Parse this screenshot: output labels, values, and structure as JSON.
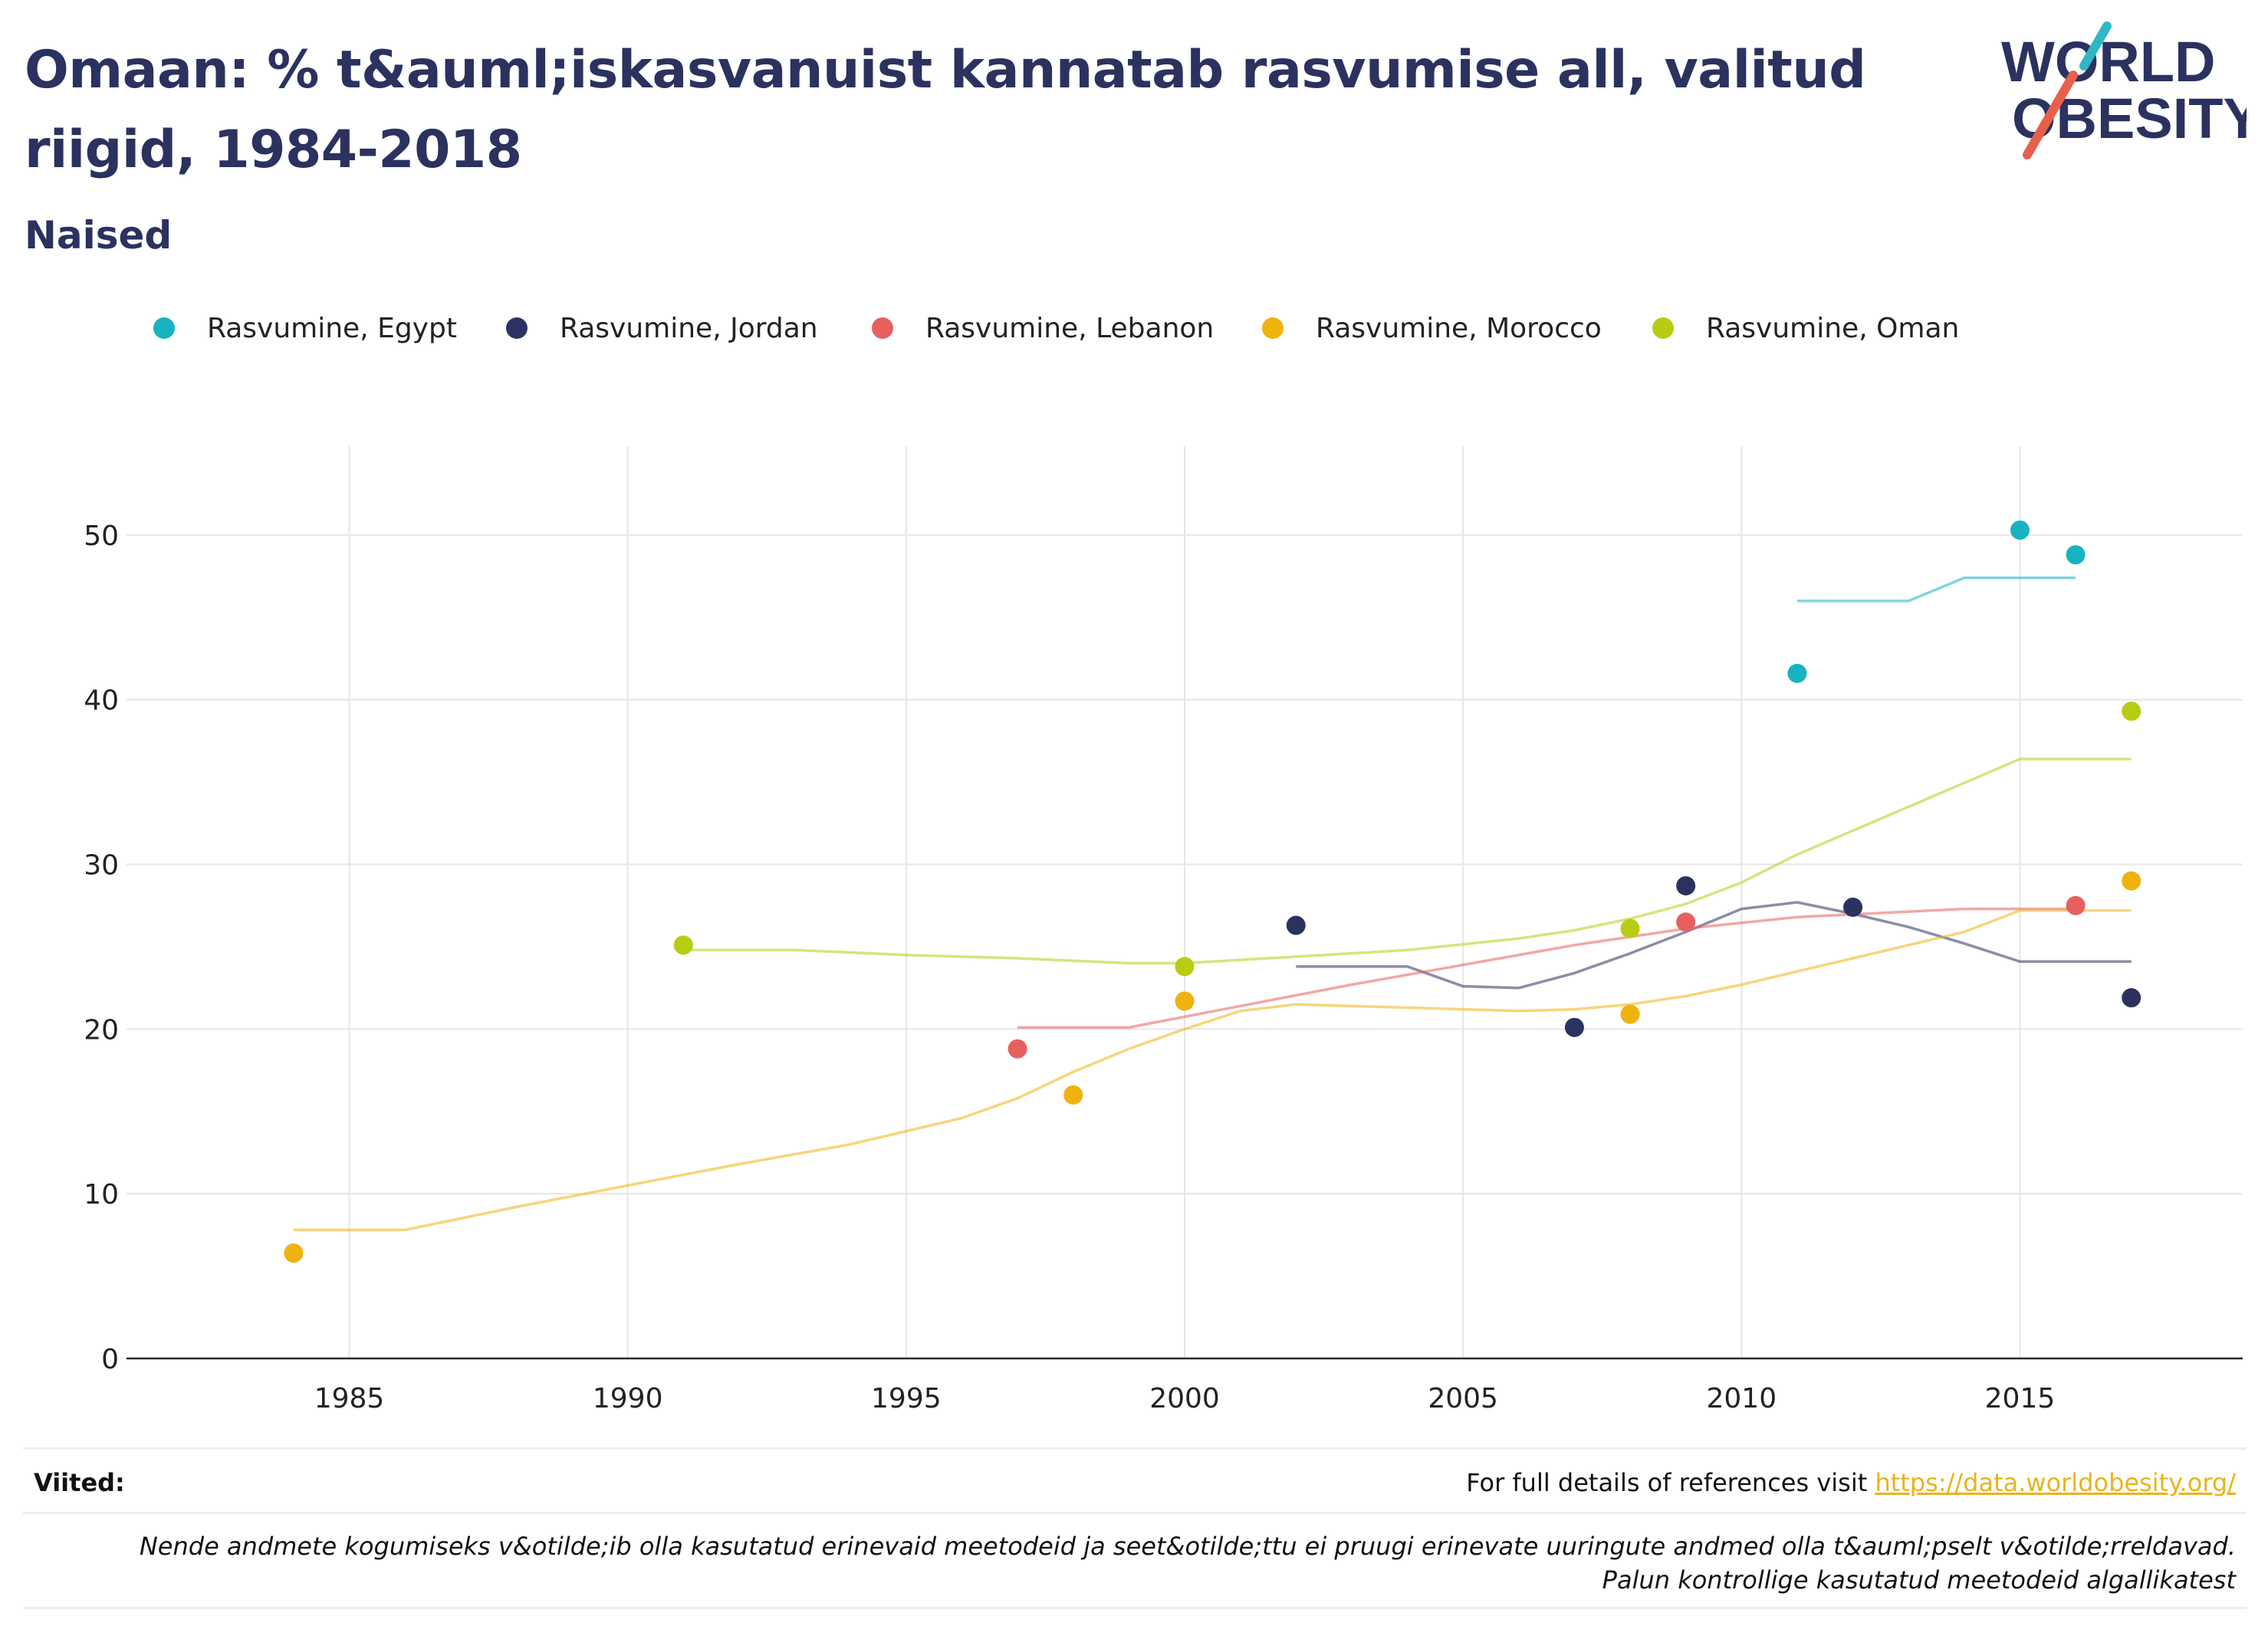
{
  "header": {
    "title": "Omaan: % t&auml;iskasvanuist kannatab rasvumise all, valitud riigid, 1984-2018",
    "subtitle": "Naised"
  },
  "logo": {
    "line1": "WORLD",
    "line2": "OBESITY"
  },
  "footer": {
    "refs_label": "Viited:",
    "refs_text": "For full details of references visit ",
    "refs_link": "https://data.worldobesity.org/",
    "note": "Nende andmete kogumiseks v&otilde;ib olla kasutatud erinevaid meetodeid ja seet&otilde;ttu ei pruugi erinevate uuringute andmed olla t&auml;pselt v&otilde;rreldavad. Palun kontrollige kasutatud meetodeid algallikatest"
  },
  "chart_data": {
    "type": "scatter",
    "title": "Omaan: % t&auml;iskasvanuist kannatab rasvumise all, valitud riigid, 1984-2018",
    "subtitle": "Naised",
    "xlabel": "",
    "ylabel": "",
    "xlim": [
      1981,
      2019
    ],
    "ylim": [
      0,
      54
    ],
    "xticks": [
      1985,
      1990,
      1995,
      2000,
      2005,
      2010,
      2015
    ],
    "yticks": [
      0,
      10,
      20,
      30,
      40,
      50
    ],
    "grid": true,
    "legend_position": "top",
    "series": [
      {
        "name": "Rasvumine, Egypt",
        "color": "#17b3c1",
        "points": [
          [
            2011,
            41.6
          ],
          [
            2015,
            50.3
          ],
          [
            2016,
            48.8
          ]
        ],
        "trend": [
          [
            2011,
            46
          ],
          [
            2013,
            46
          ],
          [
            2014,
            47.4
          ],
          [
            2016,
            47.4
          ]
        ]
      },
      {
        "name": "Rasvumine, Jordan",
        "color": "#2b325f",
        "points": [
          [
            2002,
            26.3
          ],
          [
            2007,
            20.1
          ],
          [
            2009,
            28.7
          ],
          [
            2012,
            27.4
          ],
          [
            2017,
            21.9
          ]
        ],
        "trend": [
          [
            2002,
            23.8
          ],
          [
            2004,
            23.8
          ],
          [
            2005,
            22.6
          ],
          [
            2006,
            22.5
          ],
          [
            2007,
            23.4
          ],
          [
            2008,
            24.6
          ],
          [
            2009,
            25.9
          ],
          [
            2010,
            27.3
          ],
          [
            2011,
            27.7
          ],
          [
            2012,
            27.0
          ],
          [
            2013,
            26.2
          ],
          [
            2014,
            25.2
          ],
          [
            2015,
            24.1
          ],
          [
            2017,
            24.1
          ]
        ]
      },
      {
        "name": "Rasvumine, Lebanon",
        "color": "#e85f5f",
        "points": [
          [
            1997,
            18.8
          ],
          [
            2009,
            26.5
          ],
          [
            2016,
            27.5
          ]
        ],
        "trend": [
          [
            1997,
            20.1
          ],
          [
            1999,
            20.1
          ],
          [
            2001,
            21.4
          ],
          [
            2003,
            22.7
          ],
          [
            2005,
            23.9
          ],
          [
            2007,
            25.1
          ],
          [
            2009,
            26.1
          ],
          [
            2011,
            26.8
          ],
          [
            2014,
            27.3
          ],
          [
            2016,
            27.3
          ]
        ]
      },
      {
        "name": "Rasvumine, Morocco",
        "color": "#f0b20e",
        "points": [
          [
            1984,
            6.4
          ],
          [
            1998,
            16.0
          ],
          [
            2000,
            21.7
          ],
          [
            2008,
            20.9
          ],
          [
            2017,
            29.0
          ]
        ],
        "trend": [
          [
            1984,
            7.8
          ],
          [
            1986,
            7.8
          ],
          [
            1988,
            9.2
          ],
          [
            1990,
            10.5
          ],
          [
            1992,
            11.8
          ],
          [
            1994,
            13.0
          ],
          [
            1996,
            14.6
          ],
          [
            1997,
            15.8
          ],
          [
            1998,
            17.4
          ],
          [
            1999,
            18.8
          ],
          [
            2000,
            20.0
          ],
          [
            2001,
            21.1
          ],
          [
            2002,
            21.5
          ],
          [
            2004,
            21.3
          ],
          [
            2006,
            21.1
          ],
          [
            2007,
            21.2
          ],
          [
            2008,
            21.5
          ],
          [
            2009,
            22.0
          ],
          [
            2010,
            22.7
          ],
          [
            2012,
            24.3
          ],
          [
            2014,
            25.9
          ],
          [
            2015,
            27.2
          ],
          [
            2017,
            27.2
          ]
        ]
      },
      {
        "name": "Rasvumine, Oman",
        "color": "#b7cd13",
        "points": [
          [
            1991,
            25.1
          ],
          [
            2000,
            23.8
          ],
          [
            2008,
            26.1
          ],
          [
            2017,
            39.3
          ]
        ],
        "trend": [
          [
            1991,
            24.8
          ],
          [
            1993,
            24.8
          ],
          [
            1995,
            24.5
          ],
          [
            1997,
            24.3
          ],
          [
            1999,
            24.0
          ],
          [
            2000,
            24.0
          ],
          [
            2002,
            24.4
          ],
          [
            2004,
            24.8
          ],
          [
            2006,
            25.5
          ],
          [
            2007,
            26.0
          ],
          [
            2008,
            26.7
          ],
          [
            2009,
            27.6
          ],
          [
            2010,
            28.9
          ],
          [
            2011,
            30.6
          ],
          [
            2013,
            33.5
          ],
          [
            2015,
            36.4
          ],
          [
            2017,
            36.4
          ]
        ]
      }
    ]
  }
}
